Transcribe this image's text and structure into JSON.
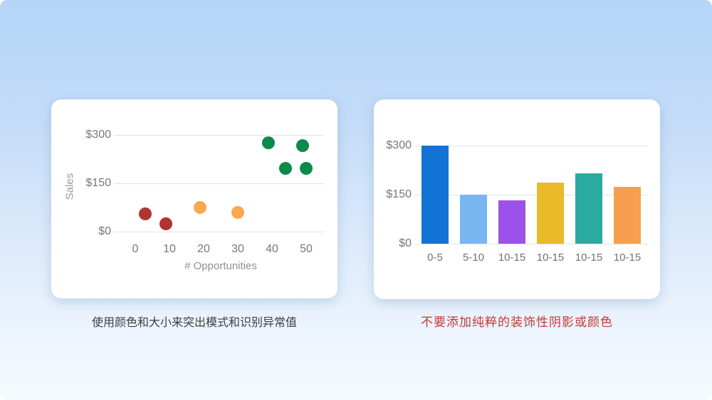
{
  "theme": {
    "background_top": "#b5d5f7",
    "background_bottom": "#f5fafe",
    "card_background": "#ffffff",
    "grid_color": "#e2e2e5",
    "tick_text_color": "#77777a",
    "axis_title_color": "#9a9a9e",
    "category_text_color": "#717174"
  },
  "captions": {
    "left": {
      "text": "使用颜色和大小来突出模式和识别异常值",
      "color": "#3e3e40"
    },
    "right": {
      "text": "不要添加纯粹的装饰性阴影或颜色",
      "color": "#c23934"
    }
  },
  "chart_data": [
    {
      "type": "scatter",
      "title": "",
      "xlabel": "# Opportunities",
      "ylabel": "Sales",
      "xlim": [
        -6,
        55
      ],
      "ylim": [
        0,
        300
      ],
      "grid": true,
      "legend": "none",
      "x_ticks": [
        0,
        10,
        20,
        30,
        40,
        50
      ],
      "y_ticks": [
        {
          "value": 0,
          "label": "$0"
        },
        {
          "value": 150,
          "label": "$150"
        },
        {
          "value": 300,
          "label": "$300"
        }
      ],
      "points": [
        {
          "x": 3,
          "y": 55,
          "color": "#b0342f",
          "group": "low-outlier-red"
        },
        {
          "x": 9,
          "y": 25,
          "color": "#b0342f",
          "group": "low-outlier-red"
        },
        {
          "x": 19,
          "y": 75,
          "color": "#f9a84d",
          "group": "mid-orange"
        },
        {
          "x": 30,
          "y": 60,
          "color": "#f9a84d",
          "group": "mid-orange"
        },
        {
          "x": 39,
          "y": 275,
          "color": "#0b8a4c",
          "group": "high-green"
        },
        {
          "x": 49,
          "y": 268,
          "color": "#0b8a4c",
          "group": "high-green"
        },
        {
          "x": 44,
          "y": 196,
          "color": "#0b8a4c",
          "group": "high-green"
        },
        {
          "x": 50,
          "y": 196,
          "color": "#0b8a4c",
          "group": "high-green"
        }
      ]
    },
    {
      "type": "bar",
      "title": "",
      "xlabel": "",
      "ylabel": "",
      "ylim": [
        0,
        300
      ],
      "grid": true,
      "legend": "none",
      "categories": [
        "0-5",
        "5-10",
        "10-15",
        "10-15",
        "10-15",
        "10-15"
      ],
      "values": [
        300,
        150,
        133,
        188,
        215,
        175
      ],
      "colors": [
        "#1173d4",
        "#79b6f1",
        "#9c51e8",
        "#eaba2b",
        "#2baaa1",
        "#f4a04f"
      ],
      "y_ticks": [
        {
          "value": 0,
          "label": "$0"
        },
        {
          "value": 150,
          "label": "$150"
        },
        {
          "value": 300,
          "label": "$300"
        }
      ]
    }
  ]
}
